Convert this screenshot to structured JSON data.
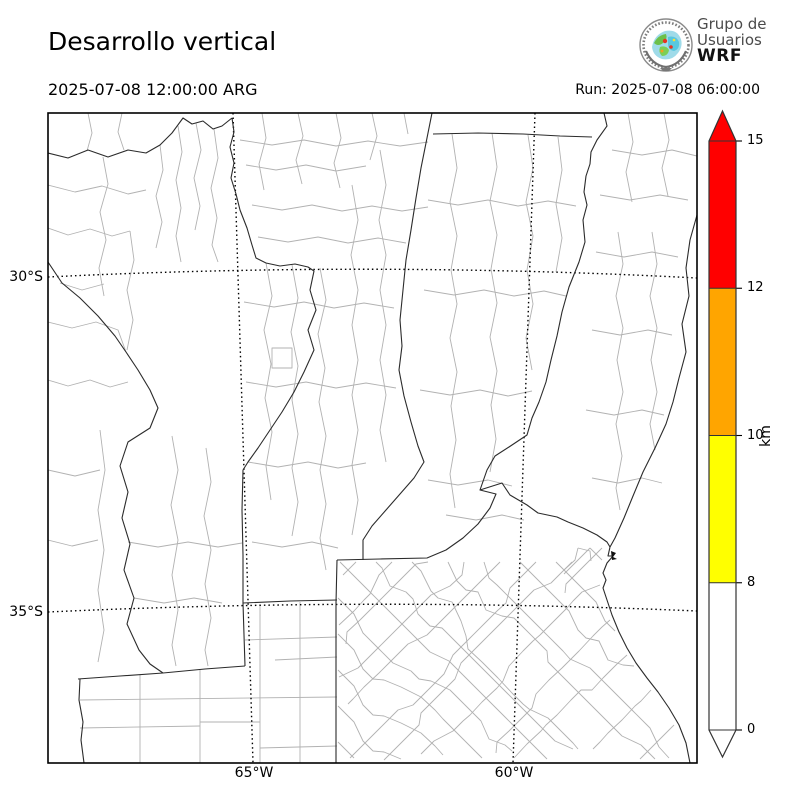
{
  "header": {
    "title": "Desarrollo vertical",
    "valid_time": "2025-07-08 12:00:00 ARG",
    "run_label": "Run: 2025-07-08 06:00:00"
  },
  "logo": {
    "line1": "Grupo de",
    "line2": "Usuarios",
    "line3": "WRF"
  },
  "map": {
    "lat_labels": [
      "30°S",
      "35°S"
    ],
    "lon_labels": [
      "65°W",
      "60°W"
    ]
  },
  "colorbar": {
    "unit": "km",
    "ticks": [
      "15",
      "12",
      "10",
      "8",
      "0"
    ],
    "segments": [
      {
        "range": "12-15",
        "color": "#ff0000"
      },
      {
        "range": "10-12",
        "color": "#ffa500"
      },
      {
        "range": "8-10",
        "color": "#ffff00"
      },
      {
        "range": "0-8",
        "color": "#ffffff"
      }
    ],
    "extend_above_color": "#ff0000",
    "extend_below_color": "#ffffff"
  }
}
